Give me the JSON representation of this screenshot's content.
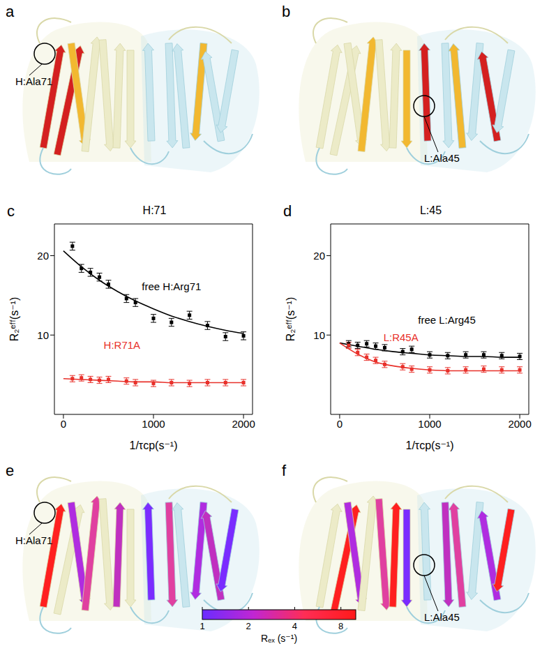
{
  "panels": [
    {
      "label": "a",
      "annotation": "H:Ala71"
    },
    {
      "label": "b",
      "annotation": "L:Ala45"
    },
    {
      "label": "e",
      "annotation": "H:Ala71"
    },
    {
      "label": "f",
      "annotation": "L:Ala45"
    }
  ],
  "chart_data": [
    {
      "panel": "c",
      "type": "scatter",
      "title": "H:71",
      "xlabel": "1/τcp(s⁻¹)",
      "ylabel": "R₂ᵉᶠᶠ(s⁻¹)",
      "xlim": [
        -100,
        2100
      ],
      "xticks": [
        0,
        1000,
        2000
      ],
      "ylim": [
        0,
        24
      ],
      "yticks": [
        10,
        20
      ],
      "series": [
        {
          "name": "free H:Arg71",
          "color": "#000000",
          "marker": "square",
          "label_x": 1200,
          "label_y": 16,
          "x": [
            100,
            200,
            300,
            400,
            500,
            700,
            800,
            1000,
            1200,
            1400,
            1600,
            1800,
            2000
          ],
          "values": [
            21.2,
            18.4,
            17.9,
            17.3,
            16.4,
            14.6,
            14.1,
            12.1,
            11.6,
            12.5,
            11.2,
            9.8,
            9.9
          ],
          "errors": [
            0.5,
            0.5,
            0.5,
            0.5,
            0.5,
            0.5,
            0.5,
            0.5,
            0.5,
            0.5,
            0.5,
            0.5,
            0.5
          ],
          "fit_x": [
            0,
            200,
            400,
            600,
            800,
            1000,
            1200,
            1400,
            1600,
            1800,
            2000
          ],
          "fit": [
            20.6,
            18.6,
            16.9,
            15.5,
            14.3,
            13.3,
            12.4,
            11.7,
            11.1,
            10.6,
            10.2
          ]
        },
        {
          "name": "H:R71A",
          "color": "#e8302a",
          "marker": "square",
          "label_x": 650,
          "label_y": 8.6,
          "x": [
            100,
            200,
            300,
            400,
            500,
            700,
            800,
            1000,
            1200,
            1400,
            1600,
            1800,
            2000
          ],
          "values": [
            4.5,
            4.6,
            4.4,
            4.3,
            4.4,
            4.2,
            4.0,
            3.9,
            4.0,
            3.9,
            4.0,
            4.0,
            4.0
          ],
          "errors": [
            0.4,
            0.4,
            0.4,
            0.4,
            0.4,
            0.4,
            0.4,
            0.4,
            0.4,
            0.4,
            0.4,
            0.4,
            0.4
          ],
          "fit_x": [
            0,
            200,
            400,
            600,
            800,
            1000,
            1200,
            1400,
            1600,
            1800,
            2000
          ],
          "fit": [
            4.5,
            4.4,
            4.3,
            4.2,
            4.1,
            4.1,
            4.0,
            4.0,
            4.0,
            4.0,
            4.0
          ]
        }
      ]
    },
    {
      "panel": "d",
      "type": "scatter",
      "title": "L:45",
      "xlabel": "1/τcp(s⁻¹)",
      "ylabel": "R₂ᵉᶠᶠ(s⁻¹)",
      "xlim": [
        -100,
        2100
      ],
      "xticks": [
        0,
        1000,
        2000
      ],
      "ylim": [
        0,
        24
      ],
      "yticks": [
        10,
        20
      ],
      "series": [
        {
          "name": "free L:Arg45",
          "color": "#000000",
          "marker": "square",
          "label_x": 1190,
          "label_y": 11.8,
          "x": [
            100,
            200,
            300,
            400,
            500,
            700,
            800,
            1000,
            1200,
            1400,
            1600,
            1800,
            2000
          ],
          "values": [
            8.9,
            8.7,
            8.9,
            8.6,
            8.4,
            7.9,
            8.2,
            7.5,
            7.4,
            7.5,
            7.5,
            7.4,
            7.3
          ],
          "errors": [
            0.4,
            0.4,
            0.4,
            0.4,
            0.4,
            0.4,
            0.4,
            0.4,
            0.4,
            0.4,
            0.4,
            0.4,
            0.4
          ],
          "fit_x": [
            0,
            200,
            400,
            600,
            800,
            1000,
            1200,
            1400,
            1600,
            1800,
            2000
          ],
          "fit": [
            9.0,
            8.6,
            8.2,
            7.9,
            7.7,
            7.5,
            7.4,
            7.3,
            7.3,
            7.2,
            7.2
          ]
        },
        {
          "name": "L:R45A",
          "color": "#e8302a",
          "marker": "square",
          "label_x": 680,
          "label_y": 9.6,
          "x": [
            100,
            200,
            300,
            400,
            500,
            700,
            800,
            1000,
            1200,
            1400,
            1600,
            1800,
            2000
          ],
          "values": [
            8.7,
            7.8,
            7.2,
            6.8,
            6.3,
            6.0,
            5.7,
            5.6,
            5.5,
            5.6,
            5.7,
            5.6,
            5.6
          ],
          "errors": [
            0.4,
            0.4,
            0.4,
            0.4,
            0.4,
            0.4,
            0.4,
            0.4,
            0.4,
            0.4,
            0.4,
            0.4,
            0.4
          ],
          "fit_x": [
            0,
            200,
            400,
            600,
            800,
            1000,
            1200,
            1400,
            1600,
            1800,
            2000
          ],
          "fit": [
            9.0,
            7.6,
            6.6,
            6.1,
            5.8,
            5.6,
            5.5,
            5.5,
            5.5,
            5.5,
            5.5
          ]
        }
      ]
    }
  ],
  "colorbar": {
    "label": "Rₑₓ (s⁻¹)",
    "range": [
      1,
      10
    ],
    "ticks": [
      1,
      2,
      4,
      8
    ],
    "log": true,
    "colors": [
      "#6a2cff",
      "#c026d3",
      "#ff2d55",
      "#ff1a1a"
    ]
  }
}
